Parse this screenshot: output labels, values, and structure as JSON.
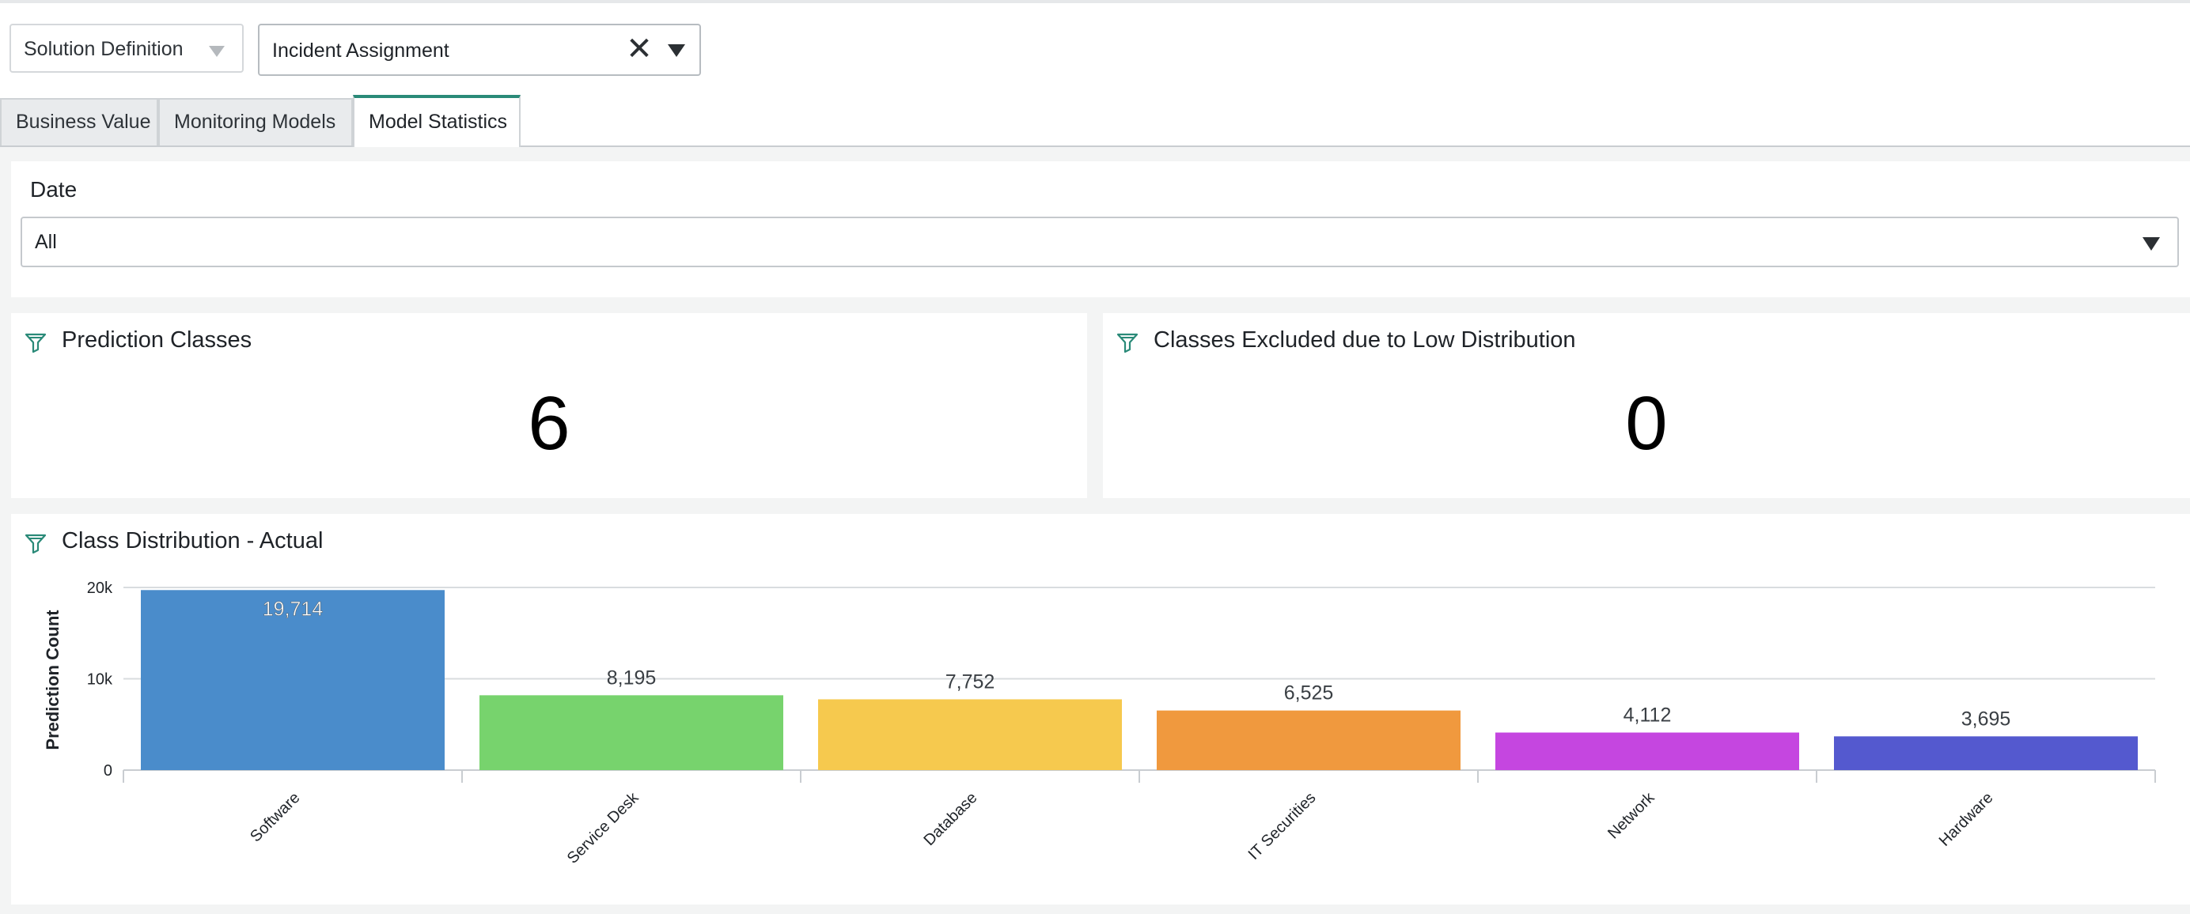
{
  "filters": {
    "solution_definition": {
      "placeholder": "Solution Definition"
    },
    "incident_selector": {
      "value": "Incident Assignment",
      "clear_icon": "close-icon"
    }
  },
  "tabs": [
    {
      "label": "Business Value",
      "active": false
    },
    {
      "label": "Monitoring Models",
      "active": false
    },
    {
      "label": "Model Statistics",
      "active": true
    }
  ],
  "date_filter": {
    "label": "Date",
    "value": "All"
  },
  "kpis": [
    {
      "title": "Prediction Classes",
      "value": "6",
      "icon": "filter-icon"
    },
    {
      "title": "Classes Excluded due to Low Distribution",
      "value": "0",
      "icon": "filter-icon"
    }
  ],
  "chart_panel": {
    "title": "Class Distribution - Actual",
    "icon": "filter-icon"
  },
  "chart_data": {
    "type": "bar",
    "categories": [
      "Software",
      "Service Desk",
      "Database",
      "IT Securities",
      "Network",
      "Hardware"
    ],
    "values": [
      19714,
      8195,
      7752,
      6525,
      4112,
      3695
    ],
    "value_labels": [
      "19,714",
      "8,195",
      "7,752",
      "6,525",
      "4,112",
      "3,695"
    ],
    "colors": [
      "#4a8ccb",
      "#77d36d",
      "#f6c94e",
      "#f0993e",
      "#c546e0",
      "#5459cf"
    ],
    "ylabel": "Prediction Count",
    "y_ticks": [
      {
        "value": 0,
        "label": "0"
      },
      {
        "value": 10000,
        "label": "10k"
      },
      {
        "value": 20000,
        "label": "20k"
      }
    ],
    "ylim": [
      0,
      20000
    ],
    "grid": true
  }
}
